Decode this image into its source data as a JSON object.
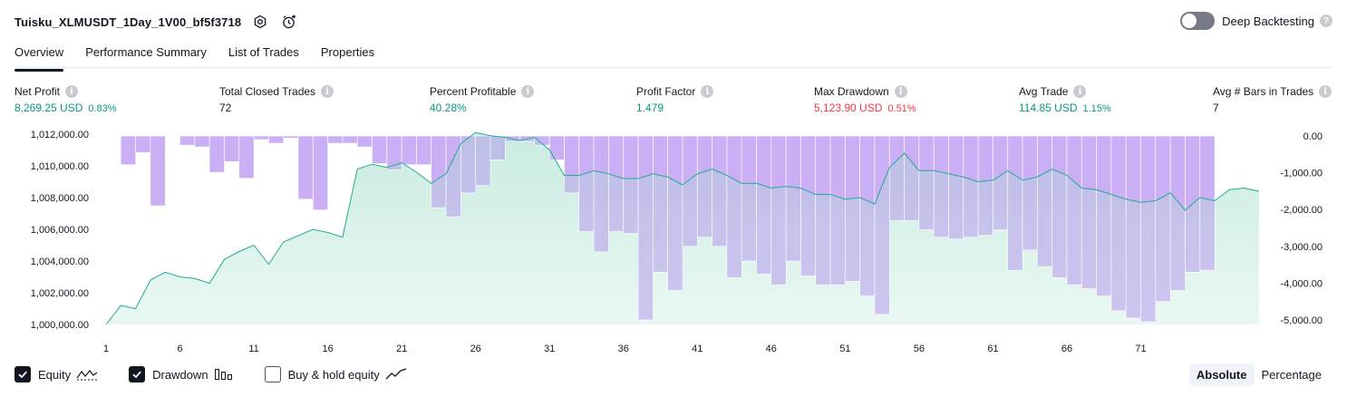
{
  "header": {
    "title": "Tuisku_XLMUSDT_1Day_1V00_bf5f3718",
    "icons": [
      "settings-icon",
      "alert-clock-icon"
    ]
  },
  "deep_backtesting": {
    "label": "Deep Backtesting",
    "enabled": false
  },
  "tabs": [
    "Overview",
    "Performance Summary",
    "List of Trades",
    "Properties"
  ],
  "active_tab": "Overview",
  "stats": {
    "net_profit": {
      "label": "Net Profit",
      "value": "8,269.25 USD",
      "pct": "0.83%"
    },
    "total_closed_trades": {
      "label": "Total Closed Trades",
      "value": "72"
    },
    "percent_profitable": {
      "label": "Percent Profitable",
      "value": "40.28%"
    },
    "profit_factor": {
      "label": "Profit Factor",
      "value": "1.479"
    },
    "max_drawdown": {
      "label": "Max Drawdown",
      "value": "5,123.90 USD",
      "pct": "0.51%"
    },
    "avg_trade": {
      "label": "Avg Trade",
      "value": "114.85 USD",
      "pct": "1.15%"
    },
    "avg_bars": {
      "label": "Avg # Bars in Trades",
      "value": "7"
    }
  },
  "colors": {
    "positive": "#089981",
    "negative": "#f23645",
    "equity_line": "#22ab94",
    "equity_fill": "#cdeee4",
    "drawdown_fill": "#d9c1fa",
    "drawdown_stroke": "#c0a2f3"
  },
  "chart_data": {
    "type": "area",
    "x_ticks": [
      1,
      6,
      11,
      16,
      21,
      26,
      31,
      36,
      41,
      46,
      51,
      56,
      61,
      66,
      71
    ],
    "left_axis": {
      "ticks": [
        "1,012,000.00",
        "1,010,000.00",
        "1,008,000.00",
        "1,006,000.00",
        "1,004,000.00",
        "1,002,000.00",
        "1,000,000.00"
      ],
      "ylim": [
        1000000,
        1012000
      ]
    },
    "right_axis": {
      "ticks": [
        "0.00",
        "-1,000.00",
        "-2,000.00",
        "-3,000.00",
        "-4,000.00",
        "-5,000.00"
      ],
      "ylim": [
        -5000,
        0
      ]
    },
    "equity": [
      1000000,
      1001200,
      1001000,
      1002800,
      1003300,
      1003000,
      1002900,
      1002600,
      1004100,
      1004600,
      1005000,
      1003800,
      1005200,
      1005600,
      1006000,
      1005800,
      1005500,
      1009800,
      1010100,
      1009900,
      1010200,
      1009600,
      1008900,
      1009500,
      1011400,
      1012100,
      1011900,
      1011800,
      1011600,
      1011800,
      1011000,
      1009400,
      1009400,
      1009700,
      1009500,
      1009200,
      1009200,
      1009500,
      1009300,
      1008800,
      1009500,
      1009800,
      1009400,
      1008900,
      1008900,
      1008600,
      1008700,
      1008600,
      1008200,
      1008200,
      1007900,
      1008000,
      1007600,
      1009900,
      1010800,
      1009700,
      1009700,
      1009500,
      1009300,
      1009000,
      1009100,
      1009700,
      1009100,
      1009300,
      1009800,
      1009400,
      1008600,
      1008500,
      1008200,
      1007900,
      1007700,
      1007800,
      1008300,
      1007200,
      1008000,
      1007800,
      1008500,
      1008600,
      1008400
    ],
    "drawdown": [
      0,
      -780,
      -450,
      -1900,
      0,
      -250,
      -300,
      -990,
      -700,
      -1150,
      -100,
      -200,
      -60,
      -1720,
      -2010,
      -200,
      -200,
      -300,
      -750,
      -920,
      -780,
      -780,
      -1950,
      -2200,
      -1550,
      -1350,
      -650,
      -150,
      -150,
      -250,
      -650,
      -1550,
      -2600,
      -3150,
      -2600,
      -2650,
      -5000,
      -3700,
      -4200,
      -3000,
      -2750,
      -3000,
      -3850,
      -3400,
      -3750,
      -4050,
      -3400,
      -3800,
      -4050,
      -4050,
      -3950,
      -4350,
      -4850,
      -2300,
      -2300,
      -2550,
      -2750,
      -2800,
      -2750,
      -2700,
      -2550,
      -3650,
      -3100,
      -3550,
      -3850,
      -4050,
      -4150,
      -4350,
      -4750,
      -4950,
      -5050,
      -4500,
      -4200,
      -3700,
      -3650
    ],
    "series": [
      {
        "name": "Equity",
        "checked": true,
        "icon": "equity-line-icon"
      },
      {
        "name": "Drawdown",
        "checked": true,
        "icon": "drawdown-bars-icon"
      },
      {
        "name": "Buy & hold equity",
        "checked": false,
        "icon": "buy-hold-line-icon"
      }
    ],
    "grid": false
  },
  "modes": [
    "Absolute",
    "Percentage"
  ],
  "active_mode": "Absolute"
}
